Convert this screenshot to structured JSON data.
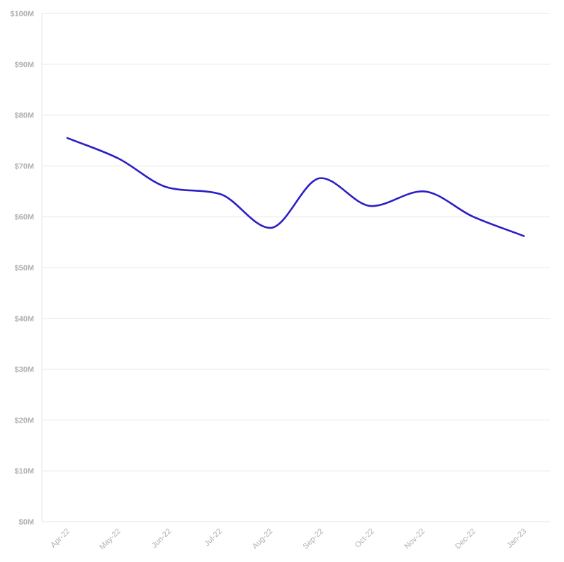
{
  "chart_data": {
    "type": "line",
    "title": "",
    "xlabel": "",
    "ylabel": "",
    "categories": [
      "Apr-22",
      "May-22",
      "Jun-22",
      "Jul-22",
      "Aug-22",
      "Sep-22",
      "Oct-22",
      "Nov-22",
      "Dec-22",
      "Jan-23"
    ],
    "series": [
      {
        "values": [
          75.5,
          71.5,
          65.7,
          64.5,
          57.8,
          67.6,
          62.1,
          65.0,
          60.0,
          56.2
        ],
        "color": "#2c1fc4"
      }
    ],
    "ylim": [
      0,
      100
    ],
    "yticks": [
      0,
      10,
      20,
      30,
      40,
      50,
      60,
      70,
      80,
      90,
      100
    ],
    "ytick_labels": [
      "$0M",
      "$10M",
      "$20M",
      "$30M",
      "$40M",
      "$50M",
      "$60M",
      "$70M",
      "$80M",
      "$90M",
      "$100M"
    ],
    "grid": true,
    "legend": "none",
    "smooth": true
  }
}
